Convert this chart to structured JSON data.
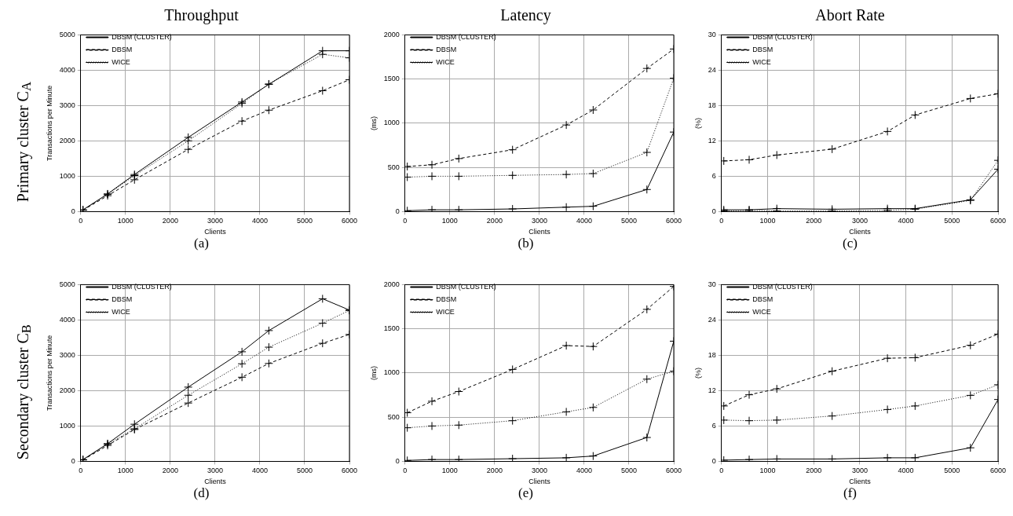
{
  "chart_data": [
    {
      "type": "line",
      "title": "Throughput",
      "xlabel": "Clients",
      "ylabel": "Transactions per Minute",
      "annotations": [
        "Primary cluster C$_{A}$",
        "(a)"
      ],
      "x": [
        50,
        600,
        1200,
        2400,
        3600,
        4200,
        5400,
        6000
      ],
      "xlim": [
        0,
        6000
      ],
      "xticks": [
        0,
        1000,
        2000,
        3000,
        4000,
        5000,
        6000
      ],
      "ylim": [
        0,
        5000
      ],
      "yticks": [
        0,
        1000,
        2000,
        3000,
        4000,
        5000
      ],
      "grid": true,
      "legend": "top left",
      "series": [
        {
          "name": "DBSM (CLUSTER)",
          "color": "#000000",
          "marker": "cross",
          "line_style": "solid",
          "values": [
            50,
            500,
            1050,
            2100,
            3100,
            3600,
            4550,
            4550
          ]
        },
        {
          "name": "DBSM",
          "color": "#000000",
          "marker": "cross",
          "line_style": "dashed",
          "values": [
            40,
            450,
            900,
            1760,
            2560,
            2870,
            3420,
            3730
          ]
        },
        {
          "name": "WICE",
          "color": "#000000",
          "marker": "cross",
          "line_style": "dotted",
          "values": [
            40,
            490,
            1020,
            2000,
            3060,
            3610,
            4450,
            4350
          ]
        }
      ]
    },
    {
      "type": "line",
      "title": "Latency",
      "xlabel": "Clients",
      "ylabel": "(ms)",
      "annotations": [
        "(b)"
      ],
      "x": [
        50,
        600,
        1200,
        2400,
        3600,
        4200,
        5400,
        6000
      ],
      "xlim": [
        0,
        6000
      ],
      "xticks": [
        0,
        1000,
        2000,
        3000,
        4000,
        5000,
        6000
      ],
      "ylim": [
        0,
        2000
      ],
      "yticks": [
        0,
        500,
        1000,
        1500,
        2000
      ],
      "grid": true,
      "legend": "top left",
      "series": [
        {
          "name": "DBSM (CLUSTER)",
          "color": "#000000",
          "marker": "cross",
          "line_style": "solid",
          "values": [
            10,
            20,
            20,
            30,
            50,
            60,
            250,
            900
          ]
        },
        {
          "name": "DBSM",
          "color": "#000000",
          "marker": "cross",
          "line_style": "dashed",
          "values": [
            510,
            530,
            600,
            700,
            980,
            1150,
            1620,
            1840
          ]
        },
        {
          "name": "WICE",
          "color": "#000000",
          "marker": "cross",
          "line_style": "dotted",
          "values": [
            390,
            400,
            400,
            410,
            420,
            430,
            670,
            1510
          ]
        }
      ]
    },
    {
      "type": "line",
      "title": "Abort Rate",
      "xlabel": "Clients",
      "ylabel": "(%)",
      "annotations": [
        "(c)"
      ],
      "x": [
        50,
        600,
        1200,
        2400,
        3600,
        4200,
        5400,
        6000
      ],
      "xlim": [
        0,
        6000
      ],
      "xticks": [
        0,
        1000,
        2000,
        3000,
        4000,
        5000,
        6000
      ],
      "ylim": [
        0,
        30
      ],
      "yticks": [
        0,
        6,
        12,
        18,
        24,
        30
      ],
      "grid": true,
      "legend": "top left",
      "series": [
        {
          "name": "DBSM (CLUSTER)",
          "color": "#000000",
          "marker": "cross",
          "line_style": "solid",
          "values": [
            0.3,
            0.3,
            0.5,
            0.4,
            0.5,
            0.5,
            2.0,
            7.2
          ]
        },
        {
          "name": "DBSM",
          "color": "#000000",
          "marker": "cross",
          "line_style": "dashed",
          "values": [
            8.6,
            8.8,
            9.6,
            10.6,
            13.6,
            16.4,
            19.2,
            20.0
          ]
        },
        {
          "name": "WICE",
          "color": "#000000",
          "marker": "cross",
          "line_style": "dotted",
          "values": [
            0.1,
            0.2,
            0.1,
            0.1,
            0.2,
            0.4,
            1.9,
            8.7
          ]
        }
      ]
    },
    {
      "type": "line",
      "xlabel": "Clients",
      "ylabel": "Transactions per Minute",
      "annotations": [
        "Secondary cluster C$_{B}$",
        "(d)"
      ],
      "x": [
        50,
        600,
        1200,
        2400,
        3600,
        4200,
        5400,
        6000
      ],
      "xlim": [
        0,
        6000
      ],
      "xticks": [
        0,
        1000,
        2000,
        3000,
        4000,
        5000,
        6000
      ],
      "ylim": [
        0,
        5000
      ],
      "yticks": [
        0,
        1000,
        2000,
        3000,
        4000,
        5000
      ],
      "grid": true,
      "legend": "top left",
      "series": [
        {
          "name": "DBSM (CLUSTER)",
          "color": "#000000",
          "marker": "cross",
          "line_style": "solid",
          "values": [
            50,
            500,
            1050,
            2100,
            3100,
            3700,
            4600,
            4280
          ]
        },
        {
          "name": "DBSM",
          "color": "#000000",
          "marker": "cross",
          "line_style": "dashed",
          "values": [
            40,
            450,
            900,
            1650,
            2380,
            2770,
            3340,
            3590
          ]
        },
        {
          "name": "WICE",
          "color": "#000000",
          "marker": "cross",
          "line_style": "dotted",
          "values": [
            40,
            490,
            920,
            1870,
            2760,
            3230,
            3910,
            4270
          ]
        }
      ]
    },
    {
      "type": "line",
      "xlabel": "Clients",
      "ylabel": "(ms)",
      "annotations": [
        "(e)"
      ],
      "x": [
        50,
        600,
        1200,
        2400,
        3600,
        4200,
        5400,
        6000
      ],
      "xlim": [
        0,
        6000
      ],
      "xticks": [
        0,
        1000,
        2000,
        3000,
        4000,
        5000,
        6000
      ],
      "ylim": [
        0,
        2000
      ],
      "yticks": [
        0,
        500,
        1000,
        1500,
        2000
      ],
      "grid": true,
      "legend": "top left",
      "series": [
        {
          "name": "DBSM (CLUSTER)",
          "color": "#000000",
          "marker": "cross",
          "line_style": "solid",
          "values": [
            10,
            20,
            20,
            30,
            40,
            60,
            270,
            1360
          ]
        },
        {
          "name": "DBSM",
          "color": "#000000",
          "marker": "cross",
          "line_style": "dashed",
          "values": [
            550,
            680,
            790,
            1040,
            1310,
            1300,
            1720,
            1980
          ]
        },
        {
          "name": "WICE",
          "color": "#000000",
          "marker": "cross",
          "line_style": "dotted",
          "values": [
            380,
            400,
            410,
            460,
            560,
            610,
            930,
            1020
          ]
        }
      ]
    },
    {
      "type": "line",
      "xlabel": "Clients",
      "ylabel": "(%)",
      "annotations": [
        "(f)"
      ],
      "x": [
        50,
        600,
        1200,
        2400,
        3600,
        4200,
        5400,
        6000
      ],
      "xlim": [
        0,
        6000
      ],
      "xticks": [
        0,
        1000,
        2000,
        3000,
        4000,
        5000,
        6000
      ],
      "ylim": [
        0,
        30
      ],
      "yticks": [
        0,
        6,
        12,
        18,
        24,
        30
      ],
      "grid": true,
      "legend": "top left",
      "series": [
        {
          "name": "DBSM (CLUSTER)",
          "color": "#000000",
          "marker": "cross",
          "line_style": "solid",
          "values": [
            0.2,
            0.3,
            0.4,
            0.4,
            0.6,
            0.6,
            2.3,
            10.5
          ]
        },
        {
          "name": "DBSM",
          "color": "#000000",
          "marker": "cross",
          "line_style": "dashed",
          "values": [
            9.4,
            11.3,
            12.3,
            15.3,
            17.5,
            17.6,
            19.7,
            21.6
          ]
        },
        {
          "name": "WICE",
          "color": "#000000",
          "marker": "cross",
          "line_style": "dotted",
          "values": [
            7.0,
            6.9,
            7.0,
            7.7,
            8.8,
            9.4,
            11.2,
            13.0
          ]
        }
      ]
    }
  ]
}
